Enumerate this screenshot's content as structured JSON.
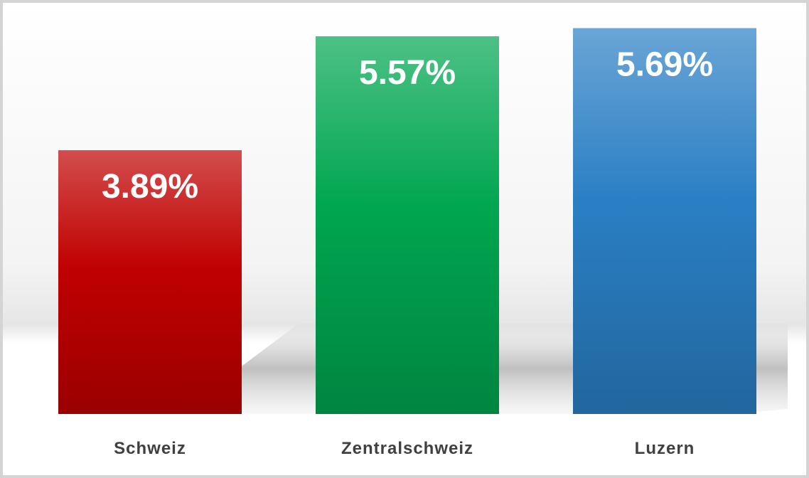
{
  "chart_data": {
    "type": "bar",
    "categories": [
      "Schweiz",
      "Zentralschweiz",
      "Luzern"
    ],
    "values": [
      3.89,
      5.57,
      5.69
    ],
    "value_labels": [
      "3.89%",
      "5.57%",
      "5.69%"
    ],
    "colors": [
      "#c00000",
      "#00a650",
      "#2a7fc4"
    ],
    "ylim": [
      0,
      6
    ]
  }
}
